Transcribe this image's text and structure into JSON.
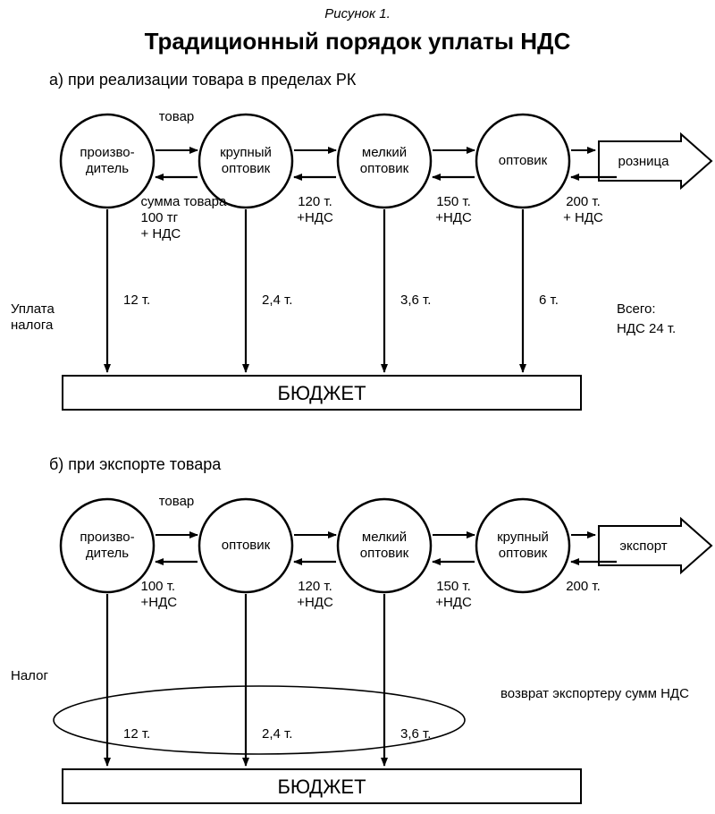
{
  "caption": "Рисунок 1.",
  "title": "Традиционный порядок уплаты НДС",
  "sectionA": {
    "heading": "а) при реализации товара в пределах РК",
    "nodes": [
      {
        "lines": [
          "произво-",
          "дитель"
        ]
      },
      {
        "lines": [
          "крупный",
          "оптовик"
        ]
      },
      {
        "lines": [
          "мелкий",
          "оптовик"
        ]
      },
      {
        "lines": [
          "оптовик"
        ]
      }
    ],
    "topArrowLabel": "товар",
    "rightBlock": "розница",
    "backLabels": [
      {
        "lines": [
          "сумма товара",
          "100 тг",
          "+ НДС"
        ]
      },
      {
        "lines": [
          "120 т.",
          "+НДС"
        ]
      },
      {
        "lines": [
          "150 т.",
          "+НДС"
        ]
      },
      {
        "lines": [
          "200 т.",
          "+ НДС"
        ]
      }
    ],
    "leftSide": [
      "Уплата",
      "налога"
    ],
    "downValues": [
      "12 т.",
      "2,4 т.",
      "3,6 т.",
      "6 т."
    ],
    "rightTotals": [
      "Всего:",
      "НДС  24 т."
    ],
    "budget": "БЮДЖЕТ"
  },
  "sectionB": {
    "heading": "б) при экспорте товара",
    "nodes": [
      {
        "lines": [
          "произво-",
          "дитель"
        ]
      },
      {
        "lines": [
          "оптовик"
        ]
      },
      {
        "lines": [
          "мелкий",
          "оптовик"
        ]
      },
      {
        "lines": [
          "крупный",
          "оптовик"
        ]
      }
    ],
    "topArrowLabel": "товар",
    "rightBlock": "экспорт",
    "backLabels": [
      {
        "lines": [
          "100 т.",
          "+НДС"
        ]
      },
      {
        "lines": [
          "120 т.",
          "+НДС"
        ]
      },
      {
        "lines": [
          "150 т.",
          "+НДС"
        ]
      },
      {
        "lines": [
          "200 т."
        ]
      }
    ],
    "leftSide": [
      "Налог"
    ],
    "downValues": [
      "12 т.",
      "2,4 т.",
      "3,6 т."
    ],
    "ellipseNote": "возврат экспортеру сумм НДС",
    "budget": "БЮДЖЕТ"
  },
  "style": {
    "bg": "#ffffff",
    "stroke": "#000000",
    "strokeWidth": 2.5,
    "thinStroke": 2,
    "circleR": 52,
    "circleXs": [
      120,
      275,
      430,
      585
    ],
    "circleYA": 180,
    "circleYB": 610,
    "budgetYA": 420,
    "budgetYB": 860,
    "budgetX": 70,
    "budgetW": 580,
    "budgetH": 38,
    "blockArrowX": 670,
    "blockArrowW": 120
  }
}
